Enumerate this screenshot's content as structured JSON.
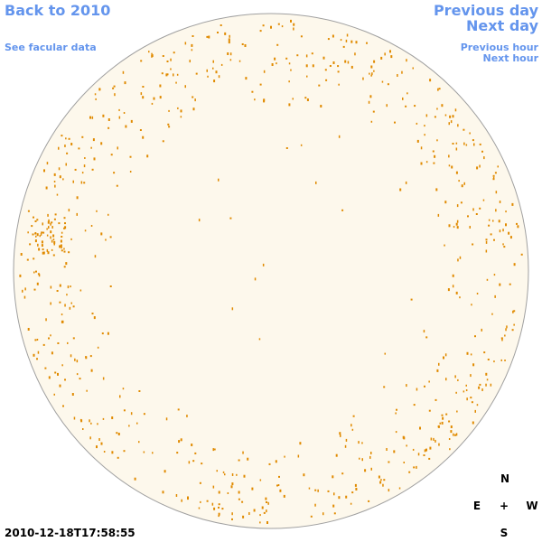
{
  "header": {
    "back": "Back to 2010",
    "facular": "See facular data",
    "previous_day": "Previous day",
    "next_day": "Next day",
    "previous_hour": "Previous hour",
    "next_hour": "Next hour"
  },
  "timestamp": "2010-12-18T17:58:55",
  "compass": {
    "north": "N",
    "east": "E",
    "center": "+",
    "west": "W",
    "south": "S"
  }
}
